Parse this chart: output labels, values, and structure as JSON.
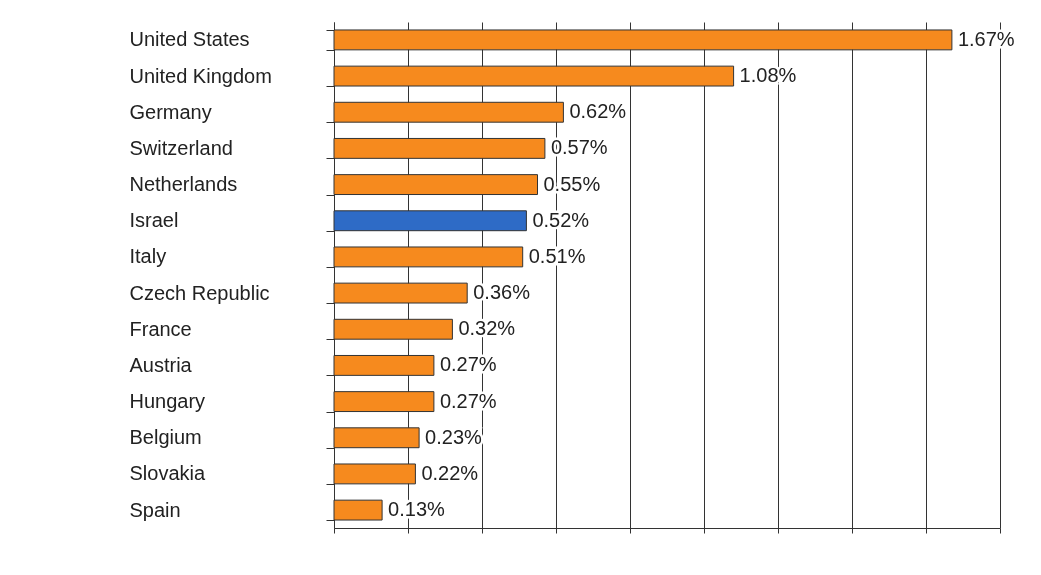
{
  "chart_data": {
    "type": "bar",
    "orientation": "horizontal",
    "categories": [
      "United States",
      "United Kingdom",
      "Germany",
      "Switzerland",
      "Netherlands",
      "Israel",
      "Italy",
      "Czech Republic",
      "France",
      "Austria",
      "Hungary",
      "Belgium",
      "Slovakia",
      "Spain"
    ],
    "values": [
      1.67,
      1.08,
      0.62,
      0.57,
      0.55,
      0.52,
      0.51,
      0.36,
      0.32,
      0.27,
      0.27,
      0.23,
      0.22,
      0.13
    ],
    "colors": [
      "#f68a1e",
      "#f68a1e",
      "#f68a1e",
      "#f68a1e",
      "#f68a1e",
      "#2e6bc6",
      "#f68a1e",
      "#f68a1e",
      "#f68a1e",
      "#f68a1e",
      "#f68a1e",
      "#f68a1e",
      "#f68a1e",
      "#f68a1e"
    ],
    "value_labels": [
      "1.67%",
      "1.08%",
      "0.62%",
      "0.57%",
      "0.55%",
      "0.52%",
      "0.51%",
      "0.36%",
      "0.32%",
      "0.27%",
      "0.27%",
      "0.23%",
      "0.22%",
      "0.13%"
    ],
    "xlim": [
      0,
      1.8
    ],
    "xticks": [
      0,
      0.2,
      0.4,
      0.6,
      0.8,
      1.0,
      1.2,
      1.4,
      1.6,
      1.8
    ],
    "grid": "x",
    "tick_labels": "y"
  }
}
